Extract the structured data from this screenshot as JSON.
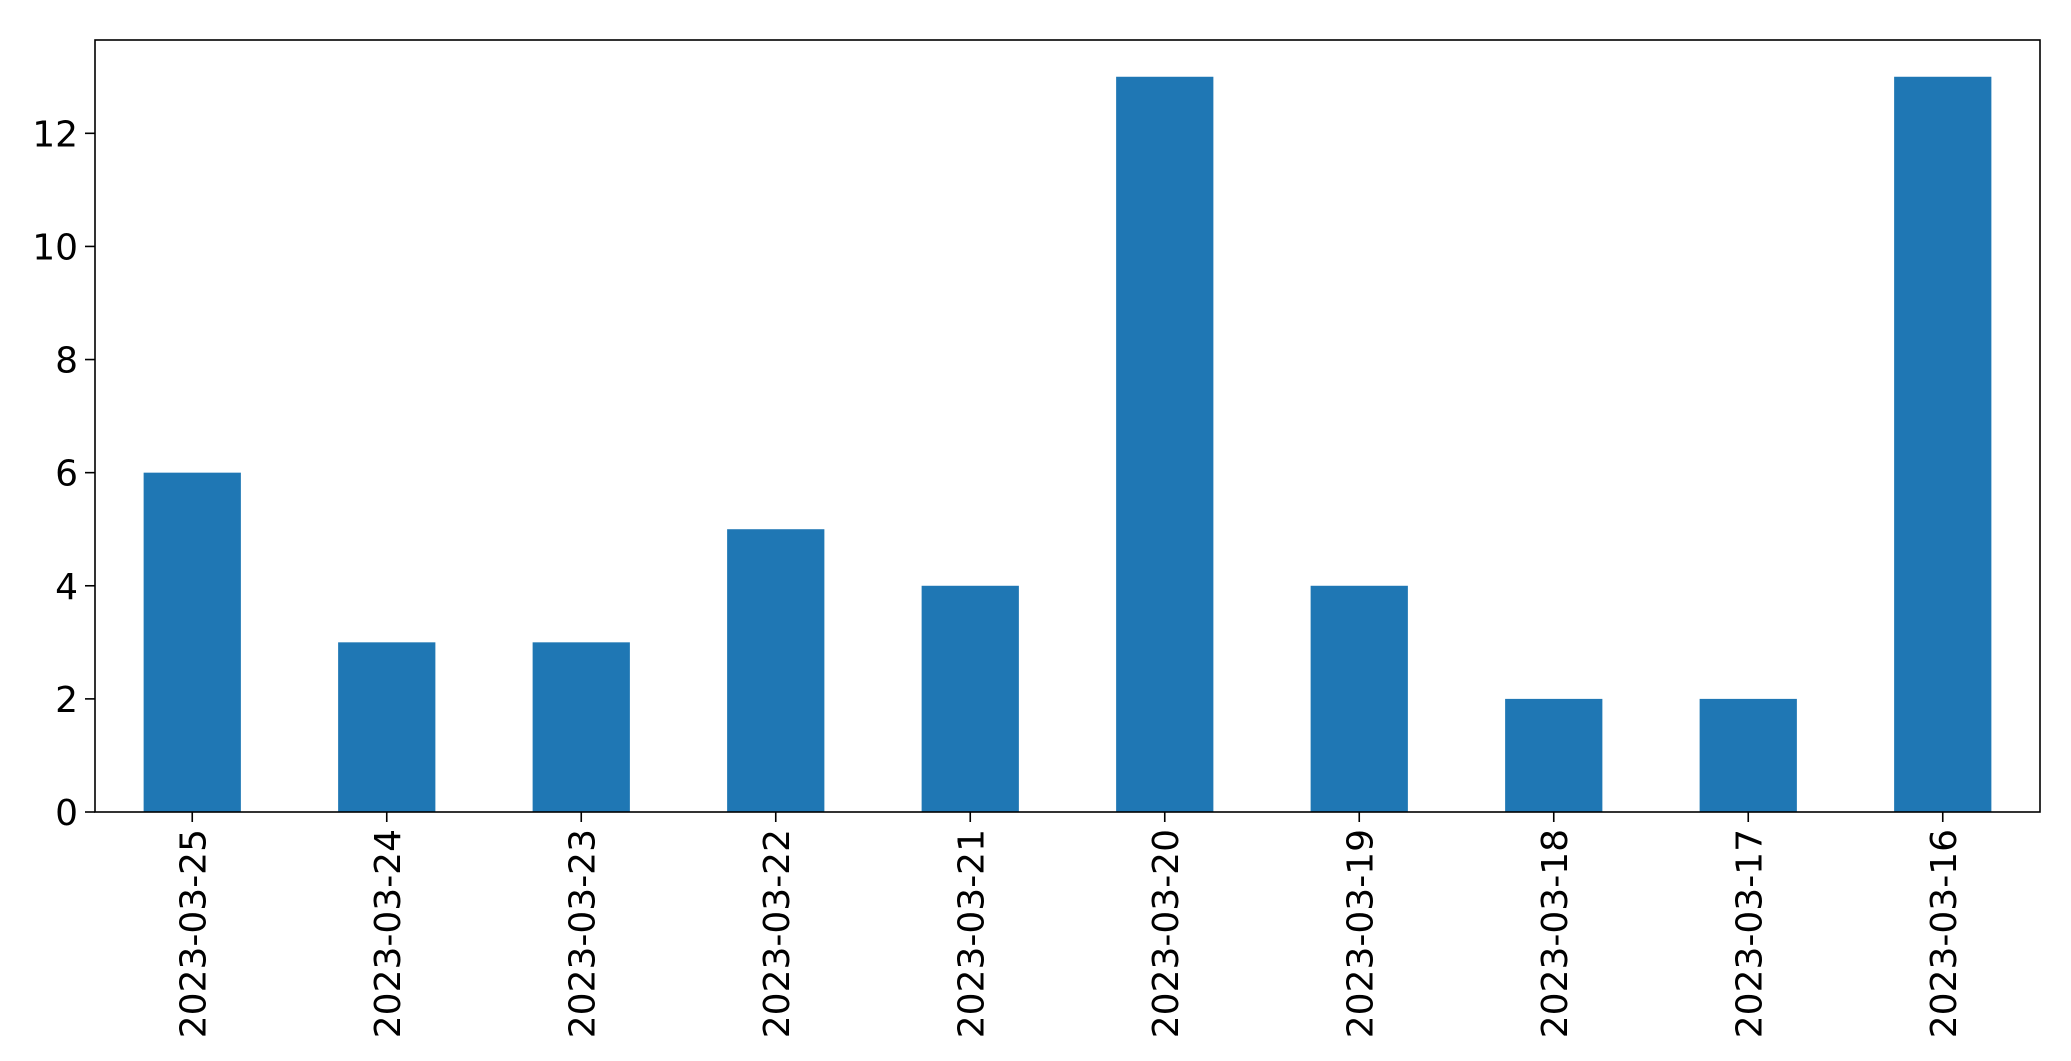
{
  "chart_data": {
    "type": "bar",
    "categories": [
      "2023-03-25",
      "2023-03-24",
      "2023-03-23",
      "2023-03-22",
      "2023-03-21",
      "2023-03-20",
      "2023-03-19",
      "2023-03-18",
      "2023-03-17",
      "2023-03-16"
    ],
    "values": [
      6,
      3,
      3,
      5,
      4,
      13,
      4,
      2,
      2,
      13
    ],
    "title": "",
    "xlabel": "",
    "ylabel": "",
    "ylim": [
      0,
      13.65
    ],
    "yticks": [
      0,
      2,
      4,
      6,
      8,
      10,
      12
    ],
    "ytick_labels": [
      "0",
      "2",
      "4",
      "6",
      "8",
      "10",
      "12"
    ],
    "grid": false,
    "legend": "none",
    "bar_color": "#1f77b4",
    "x_tick_rotation": "vertical"
  }
}
